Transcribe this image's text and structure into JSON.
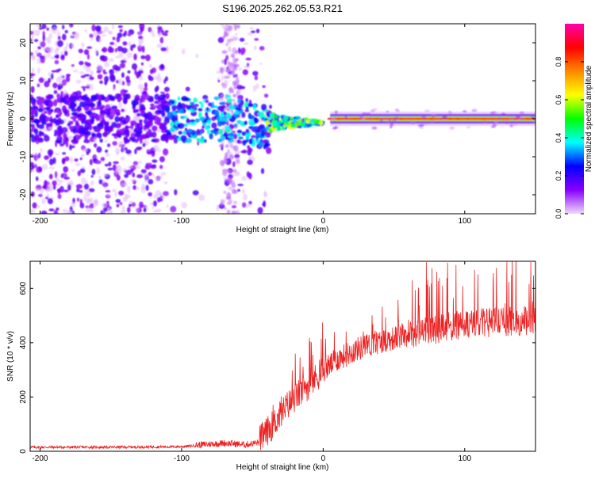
{
  "title": "S196.2025.262.05.53.R21",
  "chart_data": [
    {
      "type": "heatmap",
      "name": "spectrogram",
      "title": "S196.2025.262.05.53.R21",
      "xlabel": "Height of straight line (km)",
      "ylabel": "Frequency (Hz)",
      "xlim": [
        -207,
        150
      ],
      "ylim": [
        -25,
        25
      ],
      "xticks": [
        -200,
        -100,
        0,
        100
      ],
      "xtick_labels": [
        "-200",
        "-100",
        "0",
        "100"
      ],
      "yticks": [
        -20,
        -10,
        0,
        10,
        20
      ],
      "ytick_labels": [
        "-20",
        "-10",
        "0",
        "10",
        "20"
      ],
      "colorbar": {
        "label": "Normalized spectral amplitude",
        "range": [
          0,
          1
        ],
        "ticks": [
          0.0,
          0.2,
          0.4,
          0.6,
          0.8
        ],
        "tick_labels": [
          "0.0",
          "0.2",
          "0.4",
          "0.6",
          "0.8"
        ],
        "colors": [
          "#f0d8f8",
          "#8800ff",
          "#0000ff",
          "#00ffff",
          "#00ff00",
          "#ffff00",
          "#ff8800",
          "#ff0000",
          "#ff00aa"
        ]
      },
      "features": {
        "noise_region_km": [
          -207,
          -40
        ],
        "converging_region_km": [
          -40,
          0
        ],
        "steady_tone_km": [
          5,
          150
        ],
        "tone_frequency_hz": 0
      }
    },
    {
      "type": "line",
      "name": "snr",
      "xlabel": "Height of straight line (km)",
      "ylabel": "SNR (10 * v/v)",
      "xlim": [
        -207,
        150
      ],
      "ylim": [
        0,
        700
      ],
      "xticks": [
        -200,
        -100,
        0,
        100
      ],
      "xtick_labels": [
        "-200",
        "-100",
        "0",
        "100"
      ],
      "yticks": [
        0,
        200,
        400,
        600
      ],
      "ytick_labels": [
        "0",
        "200",
        "400",
        "600"
      ],
      "line_color": "#ee2222",
      "trend": {
        "x": [
          -207,
          -150,
          -100,
          -70,
          -55,
          -45,
          -35,
          -25,
          -15,
          -5,
          0,
          10,
          25,
          40,
          60,
          80,
          100,
          120,
          150
        ],
        "y": [
          14,
          14,
          16,
          28,
          22,
          30,
          90,
          160,
          210,
          260,
          290,
          330,
          370,
          395,
          420,
          440,
          455,
          465,
          470
        ]
      }
    }
  ]
}
